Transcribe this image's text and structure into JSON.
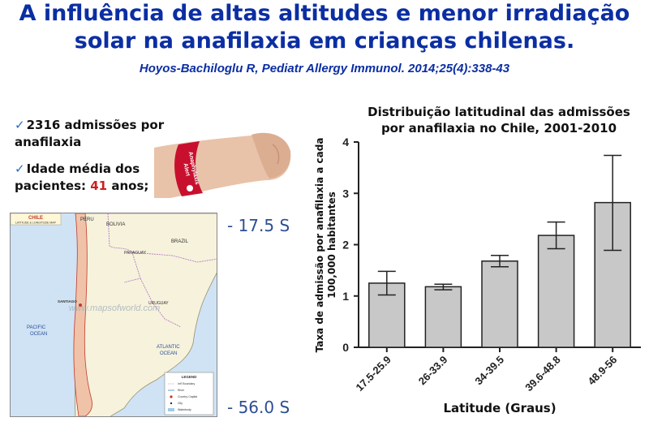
{
  "header": {
    "title_line1": "A influência de altas altitudes e menor irradiação",
    "title_line2": "solar na anafilaxia em crianças chilenas.",
    "citation": "Hoyos-Bachiloglu R, Pediatr Allergy Immunol. 2014;25(4):338-43"
  },
  "bullets": {
    "item1": "2316 admissões por anafilaxia",
    "item2_prefix": "Idade média dos pacientes: ",
    "item2_value": "41",
    "item2_suffix": " anos;"
  },
  "bracelet": {
    "text1": "Anaphylaxis",
    "text2": "Alert"
  },
  "map": {
    "title": "CHILE",
    "subtitle": "LATITUDE & LONGITUDE MAP",
    "watermark": "www.mapsofworld.com",
    "legend_title": "LEGEND",
    "legend_items": [
      "Int'l Boundary",
      "River",
      "Country Capital",
      "City",
      "Waterbody"
    ],
    "countries": {
      "peru": "PERU",
      "bolivia": "BOLIVIA",
      "brazil": "BRAZIL",
      "paraguay": "PARAGUAY",
      "uruguay": "URUGUAY"
    },
    "oceans": {
      "pacific1": "PACIFIC",
      "pacific2": "OCEAN",
      "atlantic1": "ATLANTIC",
      "atlantic2": "OCEAN"
    },
    "cities": {
      "santiago": "SANTIAGO"
    },
    "lat_top": "- 17.5 S",
    "lat_bottom": "- 56.0 S"
  },
  "chart_data": {
    "type": "bar",
    "title": "Distribuição latitudinal das admissões por anafilaxia no Chile, 2001-2010",
    "title_line1": "Distribuição latitudinal das admissões",
    "title_line2": "por anafilaxia no Chile, 2001-2010",
    "xlabel": "Latitude (Graus)",
    "ylabel": "Taxa de admissão por anafilaxia a cada 100,000 habitantes",
    "ylabel_line1": "Taxa de admissão por anafilaxia a cada",
    "ylabel_line2": "100,000 habitantes",
    "categories": [
      "17.5-25.9",
      "26-33.9",
      "34-39.5",
      "39.6-48.8",
      "48.9-56"
    ],
    "values": [
      1.25,
      1.18,
      1.68,
      2.18,
      2.82
    ],
    "error_low": [
      1.02,
      1.12,
      1.57,
      1.92,
      1.89
    ],
    "error_high": [
      1.48,
      1.23,
      1.79,
      2.44,
      3.74
    ],
    "yticks": [
      "0",
      "1",
      "2",
      "3",
      "4"
    ],
    "ylim": [
      0,
      4
    ],
    "bar_color": "#c8c8c8"
  }
}
